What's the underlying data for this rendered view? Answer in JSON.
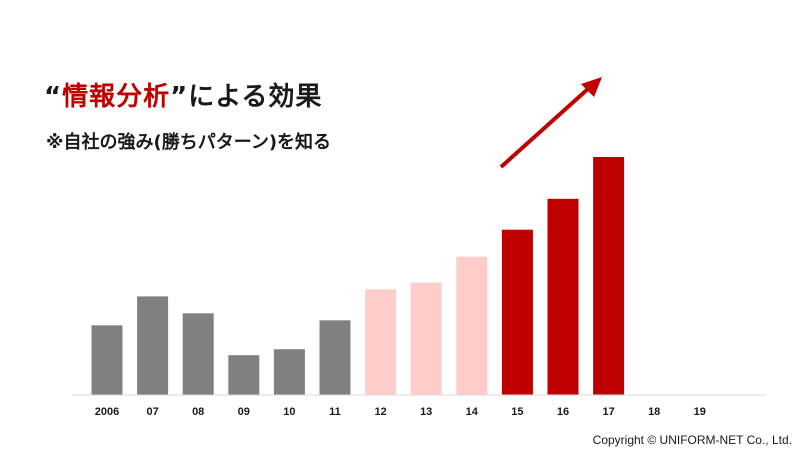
{
  "heading": {
    "open_quote": "“",
    "accent": "情報分析",
    "close_quote": "”",
    "rest": "による効果"
  },
  "subheading": "※自社の強み(勝ちパターン)を知る",
  "copyright": "Copyright © UNIFORM-NET Co., Ltd.",
  "colors": {
    "past": "#808080",
    "growth": "#ffcccc",
    "recent": "#c00000",
    "arrow": "#c00000"
  },
  "chart_data": {
    "type": "bar",
    "categories": [
      "2006",
      "07",
      "08",
      "09",
      "10",
      "11",
      "12",
      "13",
      "14",
      "15",
      "16",
      "17",
      "18",
      "19"
    ],
    "values": [
      70,
      99,
      82,
      40,
      46,
      75,
      106,
      113,
      139,
      166,
      197,
      239,
      null,
      null
    ],
    "bar_colors": [
      "#808080",
      "#808080",
      "#808080",
      "#808080",
      "#808080",
      "#808080",
      "#ffcccc",
      "#ffcccc",
      "#ffcccc",
      "#c00000",
      "#c00000",
      "#c00000",
      null,
      null
    ],
    "ylim": [
      0,
      240
    ],
    "grid": false,
    "annotation": "upward-trend-arrow"
  }
}
